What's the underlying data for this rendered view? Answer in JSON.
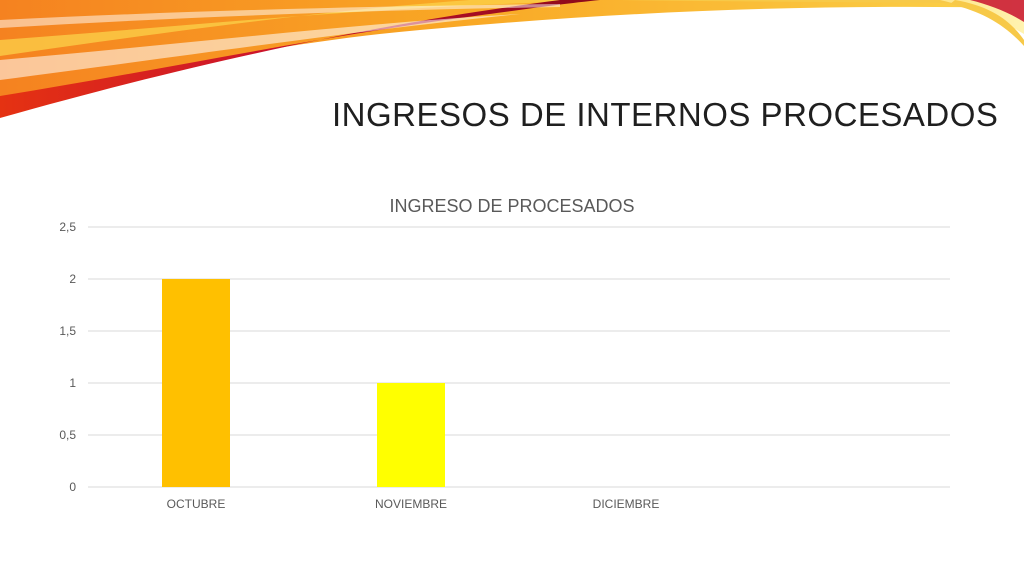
{
  "slide": {
    "title": "INGRESOS DE INTERNOS PROCESADOS"
  },
  "colors": {
    "bar_octubre": "#FFC000",
    "bar_noviembre": "#FFFF00",
    "bar_diciembre": "#FFC000",
    "grid": "#d9d9d9",
    "axis_text": "#595959",
    "chart_title": "#595959"
  },
  "chart_data": {
    "type": "bar",
    "title": "INGRESO DE PROCESADOS",
    "xlabel": "",
    "ylabel": "",
    "categories": [
      "OCTUBRE",
      "NOVIEMBRE",
      "DICIEMBRE"
    ],
    "values": [
      2,
      1,
      0
    ],
    "ylim": [
      0,
      2.5
    ],
    "yticks": [
      "0",
      "0,5",
      "1",
      "1,5",
      "2",
      "2,5"
    ],
    "ytick_values": [
      0,
      0.5,
      1,
      1.5,
      2,
      2.5
    ],
    "grid": true,
    "legend": "none"
  }
}
